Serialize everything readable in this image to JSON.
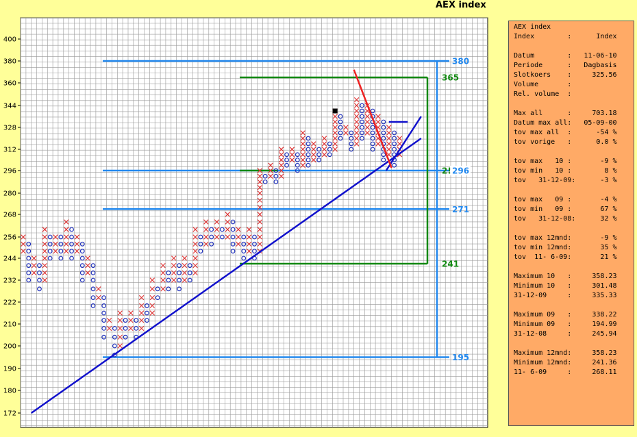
{
  "title": "AEX index",
  "chart_data": {
    "type": "point-and-figure",
    "title": "AEX index",
    "ylim": [
      165,
      412
    ],
    "y_ticks": [
      172,
      180,
      190,
      200,
      210,
      222,
      232,
      244,
      256,
      268,
      280,
      296,
      312,
      328,
      344,
      360,
      380,
      400
    ],
    "grid": true,
    "columns": [
      {
        "col": 0,
        "type": "X",
        "low": 248,
        "high": 256
      },
      {
        "col": 1,
        "type": "O",
        "low": 232,
        "high": 252
      },
      {
        "col": 2,
        "type": "X",
        "low": 236,
        "high": 244
      },
      {
        "col": 3,
        "type": "O",
        "low": 228,
        "high": 240
      },
      {
        "col": 4,
        "type": "X",
        "low": 232,
        "high": 260
      },
      {
        "col": 5,
        "type": "O",
        "low": 244,
        "high": 256
      },
      {
        "col": 6,
        "type": "X",
        "low": 248,
        "high": 256
      },
      {
        "col": 7,
        "type": "O",
        "low": 244,
        "high": 256
      },
      {
        "col": 8,
        "type": "X",
        "low": 248,
        "high": 264
      },
      {
        "col": 9,
        "type": "O",
        "low": 244,
        "high": 260
      },
      {
        "col": 10,
        "type": "X",
        "low": 248,
        "high": 256
      },
      {
        "col": 11,
        "type": "O",
        "low": 232,
        "high": 252
      },
      {
        "col": 12,
        "type": "X",
        "low": 236,
        "high": 244
      },
      {
        "col": 13,
        "type": "O",
        "low": 220,
        "high": 240
      },
      {
        "col": 14,
        "type": "X",
        "low": 224,
        "high": 228
      },
      {
        "col": 15,
        "type": "O",
        "low": 204,
        "high": 224
      },
      {
        "col": 16,
        "type": "X",
        "low": 208,
        "high": 212
      },
      {
        "col": 17,
        "type": "O",
        "low": 196,
        "high": 208
      },
      {
        "col": 18,
        "type": "X",
        "low": 200,
        "high": 216
      },
      {
        "col": 19,
        "type": "O",
        "low": 204,
        "high": 212
      },
      {
        "col": 20,
        "type": "X",
        "low": 208,
        "high": 216
      },
      {
        "col": 21,
        "type": "O",
        "low": 204,
        "high": 212
      },
      {
        "col": 22,
        "type": "X",
        "low": 208,
        "high": 224
      },
      {
        "col": 23,
        "type": "O",
        "low": 212,
        "high": 220
      },
      {
        "col": 24,
        "type": "X",
        "low": 216,
        "high": 232
      },
      {
        "col": 25,
        "type": "O",
        "low": 224,
        "high": 228
      },
      {
        "col": 26,
        "type": "X",
        "low": 228,
        "high": 240
      },
      {
        "col": 27,
        "type": "O",
        "low": 228,
        "high": 236
      },
      {
        "col": 28,
        "type": "X",
        "low": 232,
        "high": 244
      },
      {
        "col": 29,
        "type": "O",
        "low": 228,
        "high": 240
      },
      {
        "col": 30,
        "type": "X",
        "low": 232,
        "high": 244
      },
      {
        "col": 31,
        "type": "O",
        "low": 232,
        "high": 240
      },
      {
        "col": 32,
        "type": "X",
        "low": 236,
        "high": 260
      },
      {
        "col": 33,
        "type": "O",
        "low": 248,
        "high": 256
      },
      {
        "col": 34,
        "type": "X",
        "low": 252,
        "high": 264
      },
      {
        "col": 35,
        "type": "O",
        "low": 252,
        "high": 260
      },
      {
        "col": 36,
        "type": "X",
        "low": 256,
        "high": 264
      },
      {
        "col": 37,
        "type": "O",
        "low": 256,
        "high": 260
      },
      {
        "col": 38,
        "type": "X",
        "low": 256,
        "high": 268
      },
      {
        "col": 39,
        "type": "O",
        "low": 248,
        "high": 264
      },
      {
        "col": 40,
        "type": "X",
        "low": 252,
        "high": 260
      },
      {
        "col": 41,
        "type": "O",
        "low": 244,
        "high": 256
      },
      {
        "col": 42,
        "type": "X",
        "low": 248,
        "high": 260
      },
      {
        "col": 43,
        "type": "O",
        "low": 244,
        "high": 256
      },
      {
        "col": 44,
        "type": "X",
        "low": 248,
        "high": 296
      },
      {
        "col": 45,
        "type": "O",
        "low": 288,
        "high": 292
      },
      {
        "col": 46,
        "type": "X",
        "low": 292,
        "high": 300
      },
      {
        "col": 47,
        "type": "O",
        "low": 288,
        "high": 296
      },
      {
        "col": 48,
        "type": "X",
        "low": 292,
        "high": 312
      },
      {
        "col": 49,
        "type": "O",
        "low": 300,
        "high": 308
      },
      {
        "col": 50,
        "type": "X",
        "low": 304,
        "high": 312
      },
      {
        "col": 51,
        "type": "O",
        "low": 296,
        "high": 308
      },
      {
        "col": 52,
        "type": "X",
        "low": 300,
        "high": 324
      },
      {
        "col": 53,
        "type": "O",
        "low": 300,
        "high": 320
      },
      {
        "col": 54,
        "type": "X",
        "low": 304,
        "high": 316
      },
      {
        "col": 55,
        "type": "O",
        "low": 304,
        "high": 312
      },
      {
        "col": 56,
        "type": "X",
        "low": 308,
        "high": 320
      },
      {
        "col": 57,
        "type": "O",
        "low": 308,
        "high": 316
      },
      {
        "col": 58,
        "type": "X",
        "low": 312,
        "high": 340
      },
      {
        "col": 59,
        "type": "O",
        "low": 320,
        "high": 336
      },
      {
        "col": 60,
        "type": "X",
        "low": 324,
        "high": 328
      },
      {
        "col": 61,
        "type": "O",
        "low": 312,
        "high": 324
      },
      {
        "col": 62,
        "type": "X",
        "low": 316,
        "high": 348
      },
      {
        "col": 63,
        "type": "O",
        "low": 320,
        "high": 344
      },
      {
        "col": 64,
        "type": "X",
        "low": 324,
        "high": 344
      },
      {
        "col": 65,
        "type": "O",
        "low": 312,
        "high": 340
      },
      {
        "col": 66,
        "type": "X",
        "low": 316,
        "high": 336
      },
      {
        "col": 67,
        "type": "O",
        "low": 304,
        "high": 332
      },
      {
        "col": 68,
        "type": "X",
        "low": 308,
        "high": 328
      },
      {
        "col": 69,
        "type": "O",
        "low": 300,
        "high": 324
      },
      {
        "col": 70,
        "type": "X",
        "low": 308,
        "high": 320
      }
    ],
    "marker": {
      "col": 58,
      "value": 340
    },
    "horizontal_levels": [
      {
        "value": 380,
        "label": "380",
        "color": "#2288ee"
      },
      {
        "value": 365,
        "label": "365",
        "color": "#118811"
      },
      {
        "value": 296,
        "label": "296",
        "color": "#2288ee"
      },
      {
        "value": 296,
        "label": "2!",
        "color": "#118811"
      },
      {
        "value": 271,
        "label": "271",
        "color": "#2288ee"
      },
      {
        "value": 241,
        "label": "241",
        "color": "#118811"
      },
      {
        "value": 195,
        "label": "195",
        "color": "#2288ee"
      }
    ],
    "trend_lines": [
      {
        "color": "#1111cc",
        "from": [
          1.5,
          172
        ],
        "to": [
          74,
          320
        ]
      },
      {
        "color": "#1111cc",
        "from": [
          67.5,
          296
        ],
        "to": [
          74,
          336
        ]
      },
      {
        "color": "#ee2222",
        "from": [
          61.5,
          372
        ],
        "to": [
          68.5,
          298
        ]
      },
      {
        "color": "#1111cc",
        "from": [
          68,
          332
        ],
        "to": [
          71.5,
          332
        ]
      }
    ]
  },
  "info_panel": {
    "lines": [
      "AEX index",
      "Index        :      Index",
      "",
      "Datum        :   11-06-10",
      "Periode      :   Dagbasis",
      "Slotkoers    :     325.56",
      "Volume       :",
      "Rel. volume  :",
      "",
      "Max all      :     703.18",
      "Datum max all:   05-09-00",
      "tov max all  :      -54 %",
      "tov vorige   :      0.0 %",
      "",
      "tov max   10 :       -9 %",
      "tov min   10 :        8 %",
      "tov   31-12-09:      -3 %",
      "",
      "tov max   09 :       -4 %",
      "tov min   09 :       67 %",
      "tov   31-12-08:      32 %",
      "",
      "tov max 12mnd:       -9 %",
      "tov min 12mnd:       35 %",
      "tov  11- 6-09:       21 %",
      "",
      "Maximum 10   :     358.23",
      "Minimum 10   :     301.48",
      "31-12-09     :     335.33",
      "",
      "Maximum 09   :     338.22",
      "Minimum 09   :     194.99",
      "31-12-08     :     245.94",
      "",
      "Maximum 12mnd:     358.23",
      "Minimum 12mnd:     241.36",
      "11- 6-09     :     268.11"
    ]
  },
  "colors": {
    "background": "#ffff99",
    "plot_background": "#ffffff",
    "grid": "#999999",
    "x_mark": "#dd3333",
    "o_mark": "#2233bb",
    "panel": "#ffaa66"
  }
}
